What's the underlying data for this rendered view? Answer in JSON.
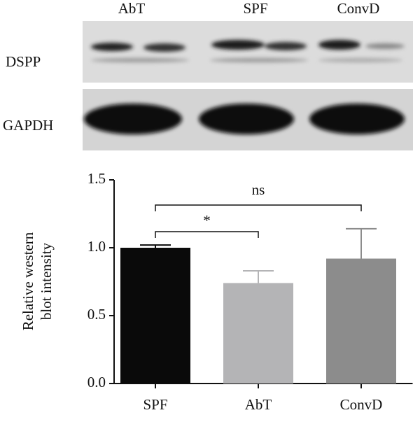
{
  "blot": {
    "lane_labels": [
      "AbT",
      "SPF",
      "ConvD"
    ],
    "row_labels": [
      "DSPP",
      "GAPDH"
    ]
  },
  "chart_data": {
    "type": "bar",
    "ylabel": [
      "Relative western",
      "blot intensity"
    ],
    "categories": [
      "SPF",
      "AbT",
      "ConvD"
    ],
    "values": [
      1.0,
      0.74,
      0.92
    ],
    "errors": [
      0.02,
      0.09,
      0.22
    ],
    "colors": [
      "#0a0a0a",
      "#b4b4b6",
      "#8c8c8c"
    ],
    "ylim": [
      0,
      1.5
    ],
    "yticks": [
      {
        "value": 0,
        "label": "0.0"
      },
      {
        "value": 0.5,
        "label": "0.5"
      },
      {
        "value": 1,
        "label": "1.0"
      },
      {
        "value": 1.5,
        "label": "1.5"
      }
    ],
    "annotations": [
      "*",
      "ns"
    ]
  }
}
